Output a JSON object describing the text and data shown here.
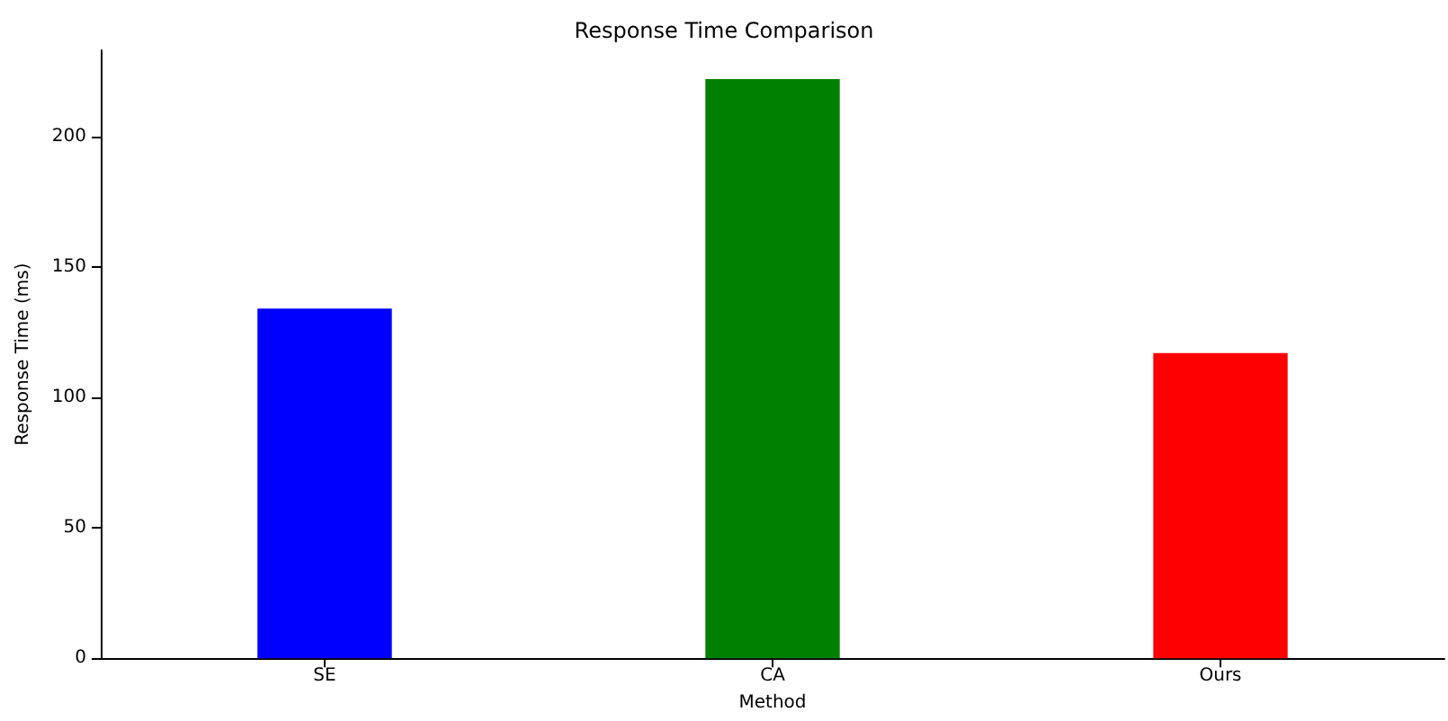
{
  "chart_data": {
    "type": "bar",
    "title": "Response Time Comparison",
    "xlabel": "Method",
    "ylabel": "Response Time (ms)",
    "categories": [
      "SE",
      "CA",
      "Ours"
    ],
    "values": [
      134,
      222,
      117
    ],
    "colors": [
      "#0000ff",
      "#008000",
      "#ff0000"
    ],
    "ylim": [
      0,
      233
    ],
    "yticks": [
      0,
      50,
      100,
      150,
      200
    ],
    "grid": false
  }
}
